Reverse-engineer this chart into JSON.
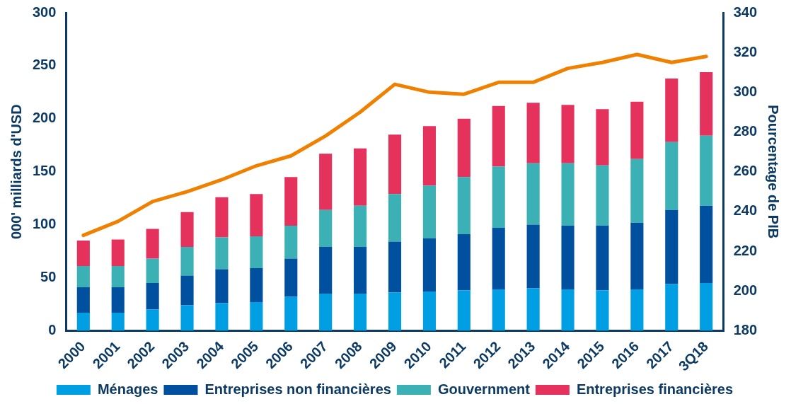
{
  "chart_data": {
    "type": "bar",
    "stacked": true,
    "categories": [
      "2000",
      "2001",
      "2002",
      "2003",
      "2004",
      "2005",
      "2006",
      "2007",
      "2008",
      "2009",
      "2010",
      "2011",
      "2012",
      "2013",
      "2014",
      "2015",
      "2016",
      "2017",
      "3Q18"
    ],
    "ylabel": "000' milliards d'USD",
    "y2label": "Pourcentage de PIB",
    "ylim": [
      0,
      300
    ],
    "yticks": [
      0,
      50,
      100,
      150,
      200,
      250,
      300
    ],
    "y2lim": [
      180,
      340
    ],
    "y2ticks": [
      180,
      200,
      220,
      240,
      260,
      280,
      300,
      320,
      340
    ],
    "grid": false,
    "legend": "bottom",
    "series": [
      {
        "name": "Ménages",
        "color": "#009fe3",
        "values": [
          17,
          17,
          20,
          24,
          26,
          27,
          32,
          35,
          35,
          36,
          37,
          38,
          39,
          40,
          39,
          38,
          39,
          44,
          45
        ]
      },
      {
        "name": "Entreprises non financières",
        "color": "#0050a0",
        "values": [
          24,
          24,
          25,
          28,
          32,
          32,
          36,
          44,
          44,
          48,
          50,
          53,
          58,
          60,
          60,
          61,
          63,
          70,
          73
        ]
      },
      {
        "name": "Gouvernment",
        "color": "#3bb0b5",
        "values": [
          20,
          20,
          23,
          27,
          30,
          30,
          31,
          35,
          39,
          45,
          50,
          54,
          58,
          58,
          59,
          57,
          60,
          64,
          66
        ]
      },
      {
        "name": "Entreprises financières",
        "color": "#e5325d",
        "values": [
          24,
          25,
          28,
          33,
          38,
          40,
          46,
          53,
          54,
          56,
          56,
          55,
          57,
          57,
          55,
          53,
          54,
          60,
          60
        ]
      },
      {
        "type": "line",
        "axis": "y2",
        "color": "#f08000",
        "marker": "none",
        "line_style": "solid",
        "values": [
          228,
          235,
          245,
          250,
          256,
          263,
          268,
          278,
          290,
          304,
          300,
          299,
          305,
          305,
          312,
          315,
          319,
          315,
          318
        ]
      }
    ]
  }
}
